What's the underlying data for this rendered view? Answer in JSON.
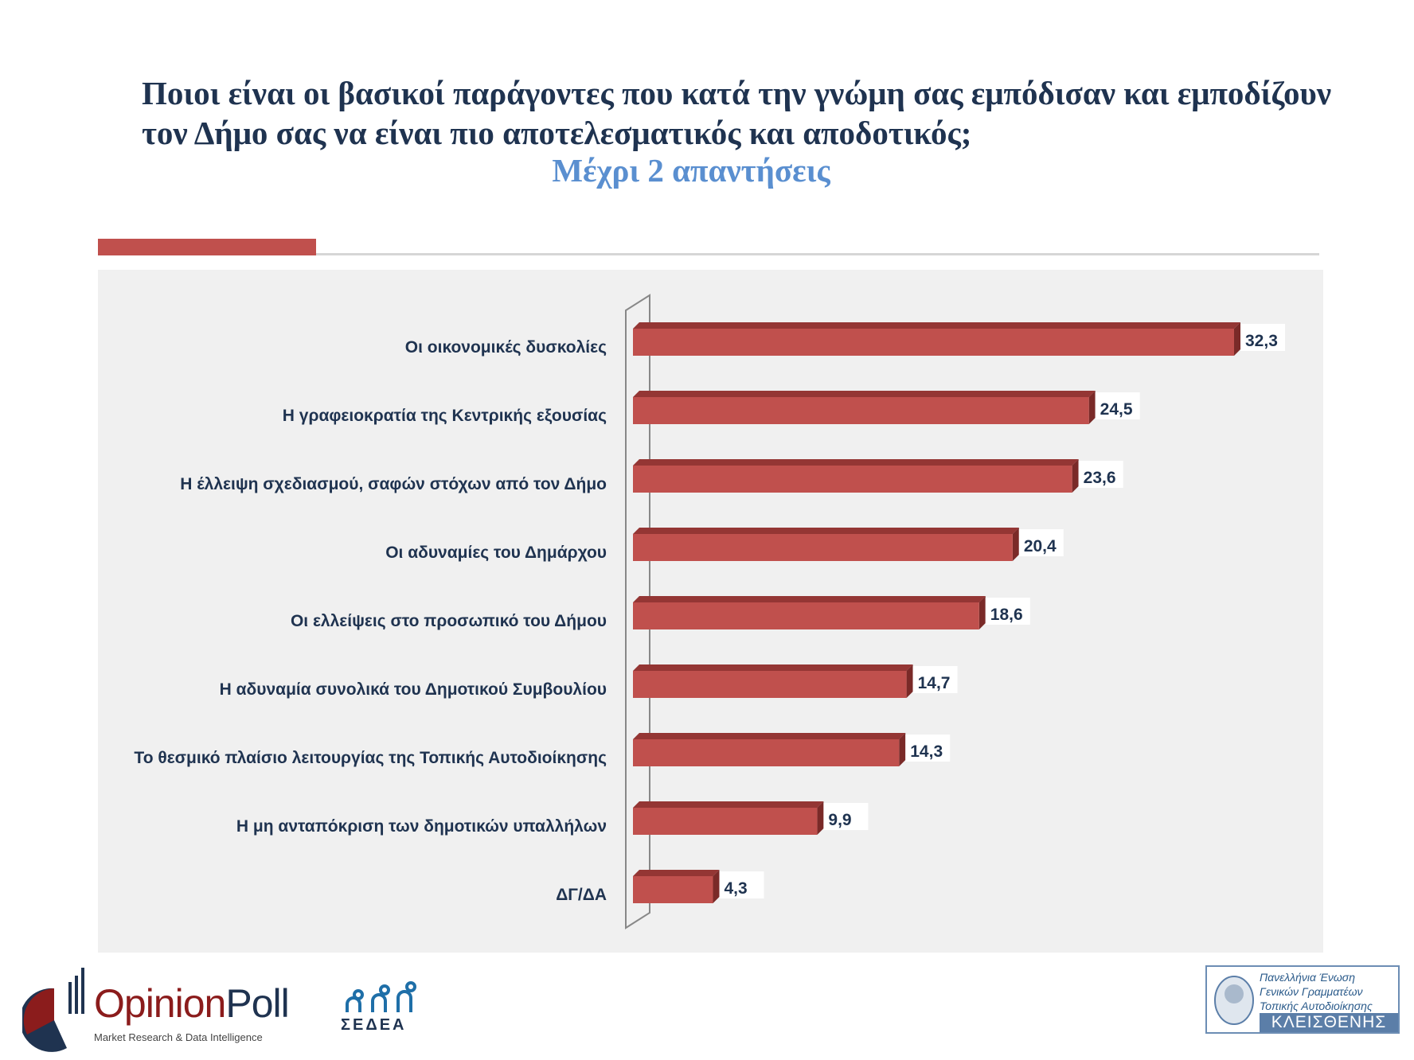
{
  "header": {
    "title": "Ποιοι είναι οι βασικοί παράγοντες  που κατά την γνώμη σας εμπόδισαν και εμποδίζουν τον Δήμο σας να είναι πιο αποτελεσματικός και αποδοτικός;",
    "subtitle": "Μέχρι 2 απαντήσεις"
  },
  "colors": {
    "bar": "#c0504d",
    "bar_top": "#943634",
    "title": "#1f3350",
    "subtitle": "#5a8fd0",
    "panel": "#f0f0f0"
  },
  "chart_data": {
    "type": "bar",
    "orientation": "horizontal",
    "title": "Ποιοι είναι οι βασικοί παράγοντες  που κατά την γνώμη σας εμπόδισαν και εμποδίζουν τον Δήμο σας να είναι πιο αποτελεσματικός και αποδοτικός;",
    "subtitle": "Μέχρι 2 απαντήσεις",
    "categories": [
      "Οι οικονομικές δυσκολίες",
      "Η γραφειοκρατία της Κεντρικής εξουσίας",
      "Η έλλειψη σχεδιασμού, σαφών στόχων από τον Δήμο",
      "Οι αδυναμίες του Δημάρχου",
      "Οι ελλείψεις στο προσωπικό του Δήμου",
      "Η αδυναμία συνολικά του Δημοτικού Συμβουλίου",
      "Το θεσμικό πλαίσιο λειτουργίας της Τοπικής Αυτοδιοίκησης",
      "Η μη ανταπόκριση των δημοτικών υπαλλήλων",
      "ΔΓ/ΔΑ"
    ],
    "values": [
      32.3,
      24.5,
      23.6,
      20.4,
      18.6,
      14.7,
      14.3,
      9.9,
      4.3
    ],
    "value_labels": [
      "32,3",
      "24,5",
      "23,6",
      "20,4",
      "18,6",
      "14,7",
      "14,3",
      "9,9",
      "4,3"
    ],
    "xlabel": "",
    "ylabel": "",
    "xlim": [
      0,
      32.3
    ],
    "grid": false,
    "legend": "none"
  },
  "logos": {
    "opinionpoll": {
      "name_a": "Opinion",
      "name_b": "Poll",
      "tagline": "Market Research & Data Intelligence"
    },
    "sedea": {
      "name": "ΣΕΔΕΑ"
    },
    "kleisthenis": {
      "line1": "Πανελλήνια Ένωση",
      "line2": "Γενικών Γραμματέων",
      "line3": "Τοπικής Αυτοδιοίκησης",
      "name": "ΚΛΕΙΣΘΕΝΗΣ"
    }
  }
}
